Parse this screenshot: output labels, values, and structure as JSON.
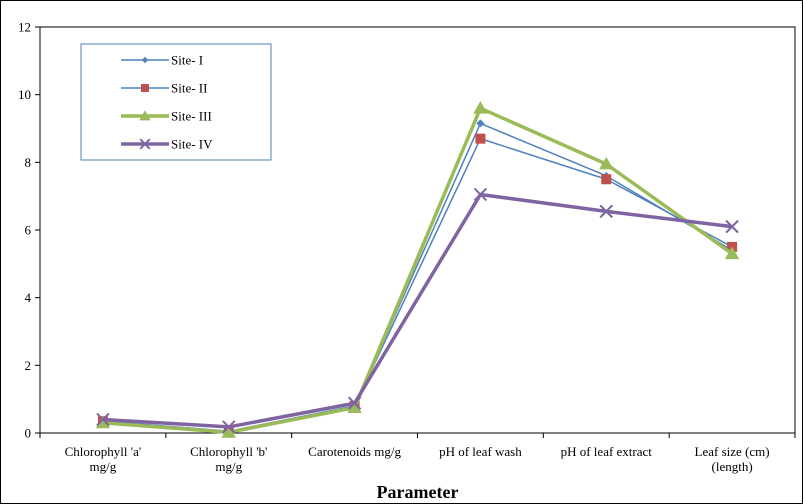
{
  "chart_data": {
    "type": "line",
    "title": "",
    "xlabel": "Parameter",
    "ylabel": "",
    "ylim": [
      0,
      12
    ],
    "yticks": [
      0,
      2,
      4,
      6,
      8,
      10,
      12
    ],
    "grid": false,
    "legend_position": "top-left",
    "categories": [
      [
        "Chlorophyll 'a'",
        "mg/g"
      ],
      [
        "Chlorophyll 'b'",
        "mg/g"
      ],
      [
        "Carotenoids mg/g"
      ],
      [
        "pH of leaf wash"
      ],
      [
        "pH of leaf extract"
      ],
      [
        "Leaf size (cm)",
        "(length)"
      ]
    ],
    "series": [
      {
        "name": "Site- I",
        "values": [
          0.35,
          0.05,
          0.8,
          9.15,
          7.6,
          5.4
        ],
        "color": "#4f81bd",
        "marker": "diamond",
        "width": 1.5
      },
      {
        "name": "Site- II",
        "values": [
          0.35,
          0.05,
          0.8,
          8.7,
          7.5,
          5.5
        ],
        "color": "#4f81bd",
        "marker": "square",
        "width": 1.5,
        "marker_color": "#c0504d"
      },
      {
        "name": "Site- III",
        "values": [
          0.3,
          0.02,
          0.75,
          9.6,
          7.95,
          5.3
        ],
        "color": "#9bbb59",
        "marker": "triangle",
        "width": 3.5
      },
      {
        "name": "Site- IV",
        "values": [
          0.4,
          0.18,
          0.88,
          7.05,
          6.55,
          6.1
        ],
        "color": "#8064a2",
        "marker": "x",
        "width": 3.5
      }
    ]
  }
}
